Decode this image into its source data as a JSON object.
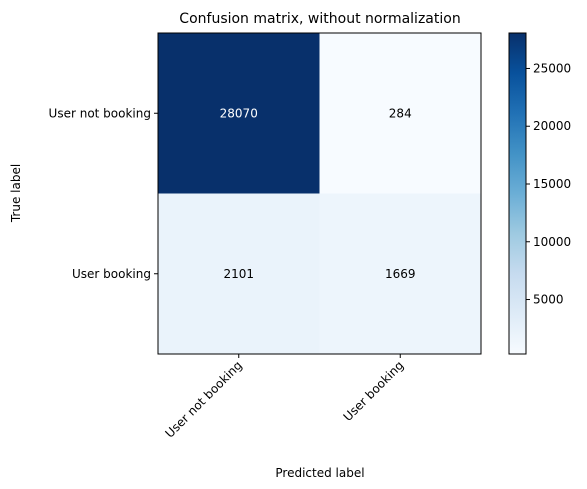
{
  "chart_data": {
    "type": "heatmap",
    "title": "Confusion matrix, without normalization",
    "xlabel": "Predicted label",
    "ylabel": "True label",
    "x_categories": [
      "User not booking",
      "User booking"
    ],
    "y_categories": [
      "User not booking",
      "User booking"
    ],
    "values": [
      [
        28070,
        284
      ],
      [
        2101,
        1669
      ]
    ],
    "colormap": "Blues",
    "colorbar": {
      "min": 284,
      "max": 28070,
      "ticks": [
        5000,
        10000,
        15000,
        20000,
        25000
      ],
      "tick_labels": [
        "5000",
        "10000",
        "15000",
        "20000",
        "25000"
      ]
    },
    "x_tick_rotation": 45
  }
}
